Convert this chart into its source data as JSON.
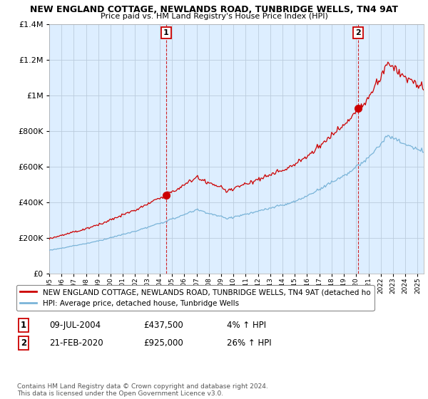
{
  "title": "NEW ENGLAND COTTAGE, NEWLANDS ROAD, TUNBRIDGE WELLS, TN4 9AT",
  "subtitle": "Price paid vs. HM Land Registry's House Price Index (HPI)",
  "legend_line1": "NEW ENGLAND COTTAGE, NEWLANDS ROAD, TUNBRIDGE WELLS, TN4 9AT (detached ho",
  "legend_line2": "HPI: Average price, detached house, Tunbridge Wells",
  "footnote": "Contains HM Land Registry data © Crown copyright and database right 2024.\nThis data is licensed under the Open Government Licence v3.0.",
  "sale1_label": "1",
  "sale1_date": "09-JUL-2004",
  "sale1_price": "£437,500",
  "sale1_hpi": "4% ↑ HPI",
  "sale1_year": 2004.52,
  "sale1_value": 437500,
  "sale2_label": "2",
  "sale2_date": "21-FEB-2020",
  "sale2_price": "£925,000",
  "sale2_hpi": "26% ↑ HPI",
  "sale2_year": 2020.13,
  "sale2_value": 925000,
  "ymax": 1400000,
  "xlim_start": 1995.0,
  "xlim_end": 2025.5,
  "red_color": "#cc0000",
  "blue_color": "#7ab4d8",
  "bg_plot": "#ddeeff",
  "bg_color": "#ffffff",
  "grid_color": "#bbccdd",
  "title_fontsize": 9,
  "subtitle_fontsize": 8
}
